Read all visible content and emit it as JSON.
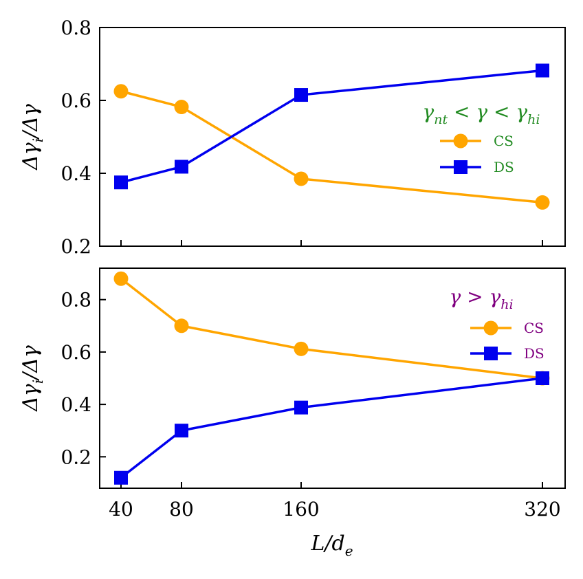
{
  "figure": {
    "xlabel": "L/d_e",
    "shared_xticks": [
      "40",
      "80",
      "160",
      "320"
    ]
  },
  "chart_data": [
    {
      "type": "line",
      "panel": "top",
      "ylabel": "Δγ_i/Δγ",
      "ylim": [
        0.2,
        0.8
      ],
      "yticks": [
        0.2,
        0.4,
        0.6,
        0.8
      ],
      "ytick_labels": [
        "0.2",
        "0.4",
        "0.6",
        "0.8"
      ],
      "x": [
        40,
        80,
        160,
        320
      ],
      "legend": {
        "title": "γ_nt < γ < γ_hi",
        "title_color": "#228b22",
        "label_color": "#228b22",
        "placement": "center-right"
      },
      "series": [
        {
          "name": "CS",
          "color": "#ffa500",
          "marker": "circle",
          "values": [
            0.625,
            0.582,
            0.385,
            0.32
          ]
        },
        {
          "name": "DS",
          "color": "#0000ee",
          "marker": "square",
          "values": [
            0.375,
            0.418,
            0.615,
            0.682
          ]
        }
      ]
    },
    {
      "type": "line",
      "panel": "bottom",
      "ylabel": "Δγ_i/Δγ",
      "ylim": [
        0.08,
        0.92
      ],
      "yticks": [
        0.2,
        0.4,
        0.6,
        0.8
      ],
      "ytick_labels": [
        "0.2",
        "0.4",
        "0.6",
        "0.8"
      ],
      "x": [
        40,
        80,
        160,
        320
      ],
      "legend": {
        "title": "γ > γ_hi",
        "title_color": "#800080",
        "label_color": "#800080",
        "placement": "top-right"
      },
      "series": [
        {
          "name": "CS",
          "color": "#ffa500",
          "marker": "circle",
          "values": [
            0.88,
            0.7,
            0.612,
            0.5
          ]
        },
        {
          "name": "DS",
          "color": "#0000ee",
          "marker": "square",
          "values": [
            0.12,
            0.3,
            0.388,
            0.5
          ]
        }
      ]
    }
  ]
}
